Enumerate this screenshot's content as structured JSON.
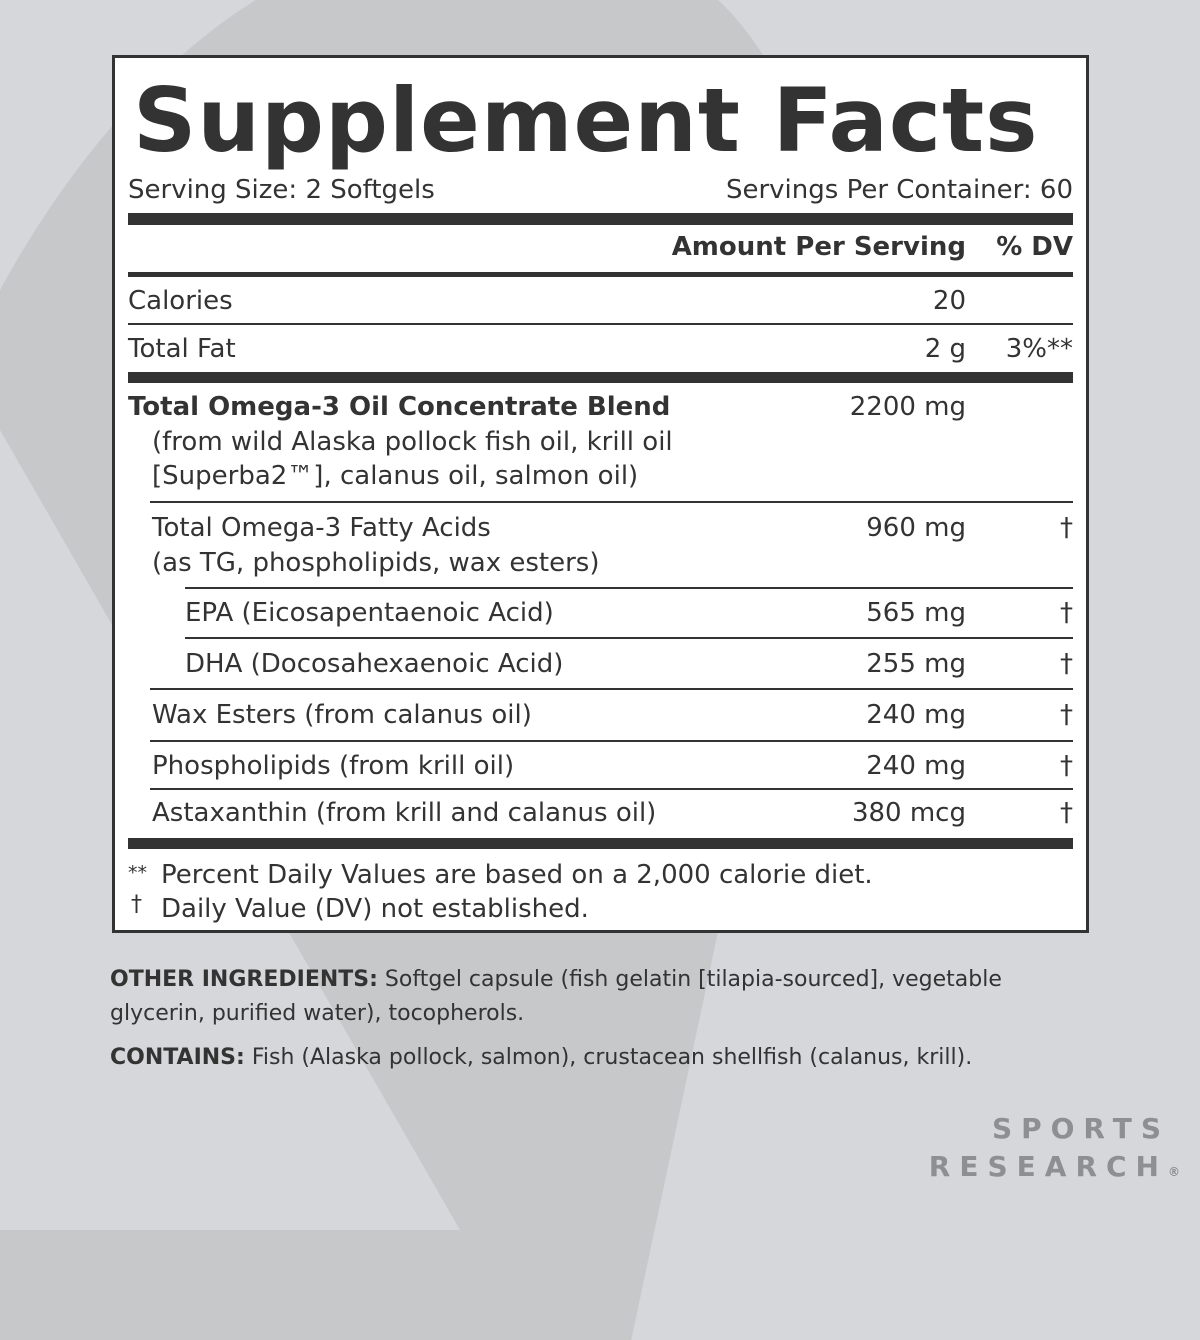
{
  "title": "Supplement Facts",
  "serving_size": "Serving Size: 2 Softgels",
  "servings_per_container": "Servings Per Container: 60",
  "header": {
    "amount": "Amount Per Serving",
    "dv": "% DV"
  },
  "rows": [
    {
      "name": "Calories",
      "amount": "20",
      "dv": ""
    },
    {
      "name": "Total Fat",
      "amount": "2 g",
      "dv": "3%**"
    },
    {
      "name": "Total Omega-3 Oil Concentrate Blend",
      "sub": [
        "(from wild Alaska pollock fish oil, krill oil",
        "[Superba2™], calanus oil, salmon oil)"
      ],
      "amount": "2200 mg",
      "dv": ""
    },
    {
      "name": "Total Omega-3 Fatty Acids",
      "sub": [
        "(as TG, phospholipids, wax esters)"
      ],
      "amount": "960 mg",
      "dv": "†"
    },
    {
      "name": "EPA (Eicosapentaenoic Acid)",
      "amount": "565 mg",
      "dv": "†"
    },
    {
      "name": "DHA (Docosahexaenoic Acid)",
      "amount": "255 mg",
      "dv": "†"
    },
    {
      "name": "Wax Esters (from calanus oil)",
      "amount": "240 mg",
      "dv": "†"
    },
    {
      "name": "Phospholipids (from krill oil)",
      "amount": "240 mg",
      "dv": "†"
    },
    {
      "name": "Astaxanthin (from krill and calanus oil)",
      "amount": "380 mcg",
      "dv": "†"
    }
  ],
  "footnotes": [
    {
      "mark": "**",
      "text": "Percent Daily Values are based on a 2,000 calorie diet."
    },
    {
      "mark": "†",
      "text": "Daily Value (DV) not established."
    }
  ],
  "other_ingredients": {
    "label": "OTHER INGREDIENTS:",
    "text": " Softgel capsule (fish gelatin [tilapia-sourced], vegetable glycerin, purified water), tocopherols."
  },
  "contains": {
    "label": "CONTAINS:",
    "text": " Fish (Alaska pollock, salmon), crustacean shellfish (calanus, krill)."
  },
  "brand": {
    "line1": "SPORTS",
    "line2": "RESEARCH",
    "mark": "®"
  }
}
